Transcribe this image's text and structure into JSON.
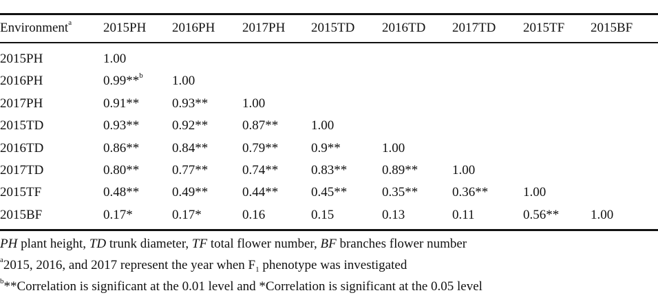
{
  "table": {
    "header": [
      "Environment",
      "2015PH",
      "2016PH",
      "2017PH",
      "2015TD",
      "2016TD",
      "2017TD",
      "2015TF",
      "2015BF"
    ],
    "header_footnote": "a",
    "rows": [
      {
        "label": "2015PH",
        "values": [
          "1.00"
        ]
      },
      {
        "label": "2016PH",
        "values": [
          "0.99**",
          "1.00"
        ],
        "first_value_footnote": "b"
      },
      {
        "label": "2017PH",
        "values": [
          "0.91**",
          "0.93**",
          "1.00"
        ]
      },
      {
        "label": "2015TD",
        "values": [
          "0.93**",
          "0.92**",
          "0.87**",
          "1.00"
        ]
      },
      {
        "label": "2016TD",
        "values": [
          "0.86**",
          "0.84**",
          "0.79**",
          "0.9**",
          "1.00"
        ]
      },
      {
        "label": "2017TD",
        "values": [
          "0.80**",
          "0.77**",
          "0.74**",
          "0.83**",
          "0.89**",
          "1.00"
        ]
      },
      {
        "label": "2015TF",
        "values": [
          "0.48**",
          "0.49**",
          "0.44**",
          "0.45**",
          "0.35**",
          "0.36**",
          "1.00"
        ]
      },
      {
        "label": "2015BF",
        "values": [
          "0.17*",
          "0.17*",
          "0.16",
          "0.15",
          "0.13",
          "0.11",
          "0.56**",
          "1.00"
        ]
      }
    ]
  },
  "notes": {
    "abbrev": [
      {
        "abbr": "PH",
        "text": " plant height, "
      },
      {
        "abbr": "TD",
        "text": " trunk diameter, "
      },
      {
        "abbr": "TF",
        "text": " total flower number, "
      },
      {
        "abbr": "BF",
        "text": " branches flower number"
      }
    ],
    "a": {
      "mark": "a",
      "text_before": "2015, 2016, and 2017 represent the year when F",
      "sub": "1",
      "text_after": " phenotype was investigated"
    },
    "b": {
      "mark": "b",
      "text": "**Correlation is significant at the 0.01 level and *Correlation is significant at the 0.05 level"
    }
  }
}
